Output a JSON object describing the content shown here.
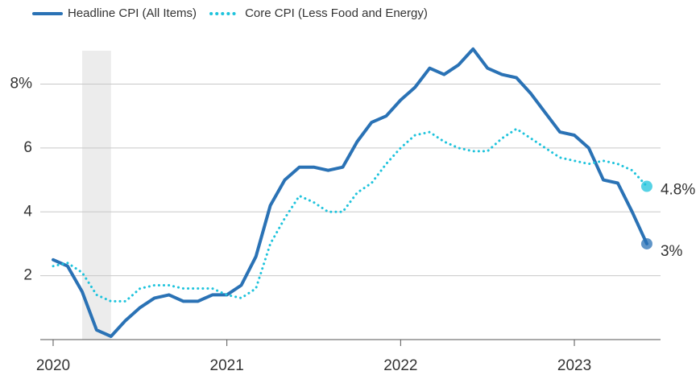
{
  "chart_data": {
    "type": "line",
    "x": [
      2020,
      2020.083,
      2020.167,
      2020.25,
      2020.333,
      2020.417,
      2020.5,
      2020.583,
      2020.667,
      2020.75,
      2020.833,
      2020.917,
      2021,
      2021.083,
      2021.167,
      2021.25,
      2021.333,
      2021.417,
      2021.5,
      2021.583,
      2021.667,
      2021.75,
      2021.833,
      2021.917,
      2022,
      2022.083,
      2022.167,
      2022.25,
      2022.333,
      2022.417,
      2022.5,
      2022.583,
      2022.667,
      2022.75,
      2022.833,
      2022.917,
      2023,
      2023.083,
      2023.167,
      2023.25,
      2023.333,
      2023.417
    ],
    "series": [
      {
        "name": "Headline CPI (All Items)",
        "color": "#2a72b5",
        "style": "solid",
        "end_label": "3%",
        "values": [
          2.5,
          2.3,
          1.5,
          0.3,
          0.1,
          0.6,
          1.0,
          1.3,
          1.4,
          1.2,
          1.2,
          1.4,
          1.4,
          1.7,
          2.6,
          4.2,
          5.0,
          5.4,
          5.4,
          5.3,
          5.4,
          6.2,
          6.8,
          7.0,
          7.5,
          7.9,
          8.5,
          8.3,
          8.6,
          9.1,
          8.5,
          8.3,
          8.2,
          7.7,
          7.1,
          6.5,
          6.4,
          6.0,
          5.0,
          4.9,
          4.0,
          3.0
        ]
      },
      {
        "name": "Core CPI (Less Food and Energy)",
        "color": "#1ec3dc",
        "style": "dotted",
        "end_label": "4.8%",
        "values": [
          2.3,
          2.4,
          2.1,
          1.4,
          1.2,
          1.2,
          1.6,
          1.7,
          1.7,
          1.6,
          1.6,
          1.6,
          1.4,
          1.3,
          1.6,
          3.0,
          3.8,
          4.5,
          4.3,
          4.0,
          4.0,
          4.6,
          4.9,
          5.5,
          6.0,
          6.4,
          6.5,
          6.2,
          6.0,
          5.9,
          5.9,
          6.3,
          6.6,
          6.3,
          6.0,
          5.7,
          5.6,
          5.5,
          5.6,
          5.5,
          5.3,
          4.8
        ]
      }
    ],
    "shaded_range": [
      2020.167,
      2020.333
    ],
    "xlim": [
      2019.926,
      2023.496
    ],
    "xticks": [
      2020,
      2021,
      2022,
      2023
    ],
    "ylim": [
      0,
      9.5
    ],
    "yticks": [
      2,
      4,
      6,
      {
        "value": 8,
        "label": "8%"
      }
    ],
    "grid": true
  }
}
